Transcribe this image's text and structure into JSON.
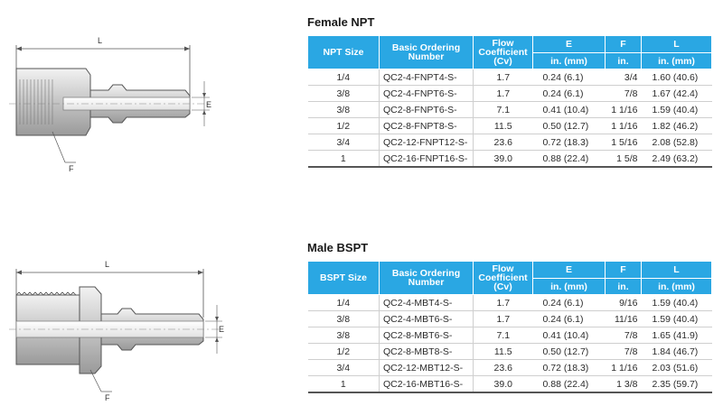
{
  "drawings": {
    "female": {
      "dim_l": "L",
      "dim_e": "E",
      "dim_f": "F"
    },
    "male": {
      "dim_l": "L",
      "dim_e": "E",
      "dim_f": "F"
    }
  },
  "female_npt": {
    "title": "Female NPT",
    "headers": {
      "size": "NPT Size",
      "ordering": "Basic Ordering Number",
      "flow": "Flow Coefficient (Cv)",
      "e": "E",
      "f": "F",
      "l": "L",
      "e_unit": "in. (mm)",
      "f_unit": "in.",
      "l_unit": "in. (mm)"
    },
    "rows": [
      {
        "size": "1/4",
        "code": "QC2-4-FNPT4-S-",
        "cv": "1.7",
        "e": "0.24  (6.1)",
        "f": "3/4",
        "l": "1.60  (40.6)"
      },
      {
        "size": "3/8",
        "code": "QC2-4-FNPT6-S-",
        "cv": "1.7",
        "e": "0.24  (6.1)",
        "f": "7/8",
        "l": "1.67  (42.4)"
      },
      {
        "size": "3/8",
        "code": "QC2-8-FNPT6-S-",
        "cv": "7.1",
        "e": "0.41  (10.4)",
        "f": "1 1/16",
        "l": "1.59  (40.4)"
      },
      {
        "size": "1/2",
        "code": "QC2-8-FNPT8-S-",
        "cv": "11.5",
        "e": "0.50  (12.7)",
        "f": "1 1/16",
        "l": "1.82  (46.2)"
      },
      {
        "size": "3/4",
        "code": "QC2-12-FNPT12-S-",
        "cv": "23.6",
        "e": "0.72  (18.3)",
        "f": "1 5/16",
        "l": "2.08  (52.8)"
      },
      {
        "size": "1",
        "code": "QC2-16-FNPT16-S-",
        "cv": "39.0",
        "e": "0.88  (22.4)",
        "f": "1 5/8",
        "l": "2.49  (63.2)"
      }
    ]
  },
  "male_bspt": {
    "title": "Male BSPT",
    "headers": {
      "size": "BSPT Size",
      "ordering": "Basic Ordering Number",
      "flow": "Flow Coefficient (Cv)",
      "e": "E",
      "f": "F",
      "l": "L",
      "e_unit": "in. (mm)",
      "f_unit": "in.",
      "l_unit": "in. (mm)"
    },
    "rows": [
      {
        "size": "1/4",
        "code": "QC2-4-MBT4-S-",
        "cv": "1.7",
        "e": "0.24  (6.1)",
        "f": "9/16",
        "l": "1.59  (40.4)"
      },
      {
        "size": "3/8",
        "code": "QC2-4-MBT6-S-",
        "cv": "1.7",
        "e": "0.24  (6.1)",
        "f": "11/16",
        "l": "1.59  (40.4)"
      },
      {
        "size": "3/8",
        "code": "QC2-8-MBT6-S-",
        "cv": "7.1",
        "e": "0.41  (10.4)",
        "f": "7/8",
        "l": "1.65  (41.9)"
      },
      {
        "size": "1/2",
        "code": "QC2-8-MBT8-S-",
        "cv": "11.5",
        "e": "0.50  (12.7)",
        "f": "7/8",
        "l": "1.84  (46.7)"
      },
      {
        "size": "3/4",
        "code": "QC2-12-MBT12-S-",
        "cv": "23.6",
        "e": "0.72  (18.3)",
        "f": "1 1/16",
        "l": "2.03  (51.6)"
      },
      {
        "size": "1",
        "code": "QC2-16-MBT16-S-",
        "cv": "39.0",
        "e": "0.88  (22.4)",
        "f": "1 3/8",
        "l": "2.35  (59.7)"
      }
    ]
  }
}
